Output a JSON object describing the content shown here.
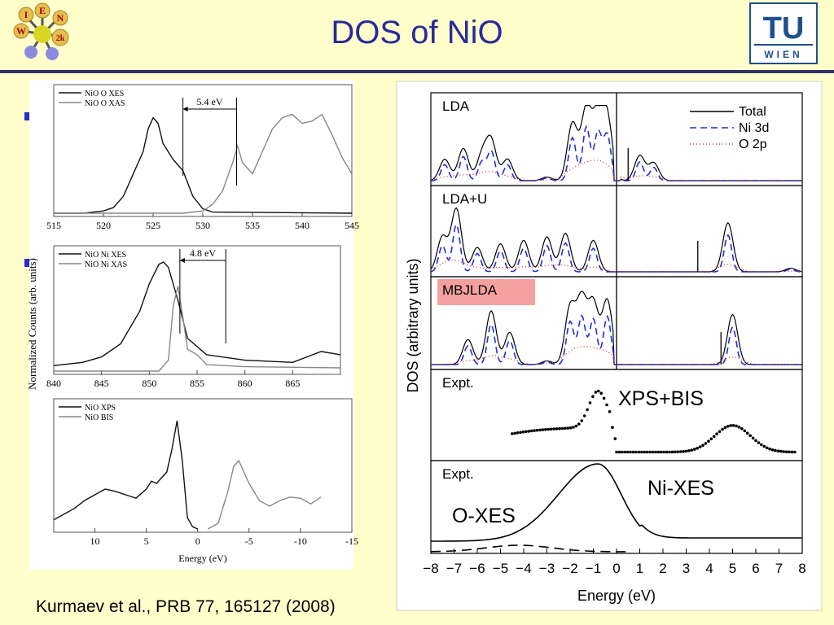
{
  "slide": {
    "title": "DOS of NiO",
    "citation": "Kurmaev et al., PRB 77, 165127 (2008)"
  },
  "logos": {
    "left_letters": [
      "I",
      "E",
      "W",
      "N",
      "2k"
    ],
    "right_text_top": "TU",
    "right_text_bottom": "WIEN"
  },
  "colors": {
    "title": "#2a2a9a",
    "background": "#ffffcc",
    "rule": "#333366"
  },
  "chart_data": [
    {
      "type": "line",
      "panel": "left-top",
      "series": [
        {
          "name": "NiO O XES",
          "x": [
            515,
            518,
            520,
            521,
            522,
            523,
            524,
            524.5,
            525,
            525.5,
            526,
            527,
            528,
            529,
            530,
            531,
            545
          ],
          "y": [
            0,
            0,
            0.02,
            0.05,
            0.15,
            0.35,
            0.55,
            0.75,
            0.85,
            0.8,
            0.62,
            0.48,
            0.38,
            0.15,
            0.04,
            0.01,
            0
          ]
        },
        {
          "name": "NiO O XAS",
          "x": [
            515,
            528,
            530,
            531,
            532,
            533,
            533.5,
            534,
            535,
            536,
            537,
            538,
            539,
            540,
            541,
            542,
            543,
            544,
            545
          ],
          "y": [
            0,
            0,
            0.02,
            0.08,
            0.2,
            0.45,
            0.6,
            0.45,
            0.35,
            0.55,
            0.75,
            0.85,
            0.88,
            0.8,
            0.82,
            0.88,
            0.7,
            0.5,
            0.35
          ]
        }
      ],
      "x_ticks": [
        "515",
        "520",
        "525",
        "530",
        "535",
        "540",
        "545"
      ],
      "xlim": [
        515,
        545
      ],
      "annotation": "5.4 eV"
    },
    {
      "type": "line",
      "panel": "left-middle",
      "series": [
        {
          "name": "NiO Ni XES",
          "x": [
            840,
            843,
            845,
            847,
            849,
            850,
            851,
            851.5,
            852,
            853,
            854,
            856,
            860,
            865,
            868,
            870
          ],
          "y": [
            0.05,
            0.08,
            0.13,
            0.25,
            0.55,
            0.8,
            0.98,
            1.0,
            0.95,
            0.65,
            0.3,
            0.15,
            0.1,
            0.08,
            0.18,
            0.15
          ]
        },
        {
          "name": "NiO Ni XAS",
          "x": [
            840,
            851,
            852,
            852.5,
            853,
            853.5,
            854,
            855,
            856,
            860,
            870
          ],
          "y": [
            0,
            0,
            0.1,
            0.6,
            0.78,
            0.5,
            0.2,
            0.15,
            0.06,
            0.04,
            0.03
          ]
        }
      ],
      "x_ticks": [
        "840",
        "845",
        "850",
        "855",
        "860",
        "865"
      ],
      "xlim": [
        840,
        870
      ],
      "annotation": "4.8 eV"
    },
    {
      "type": "line",
      "panel": "left-bottom",
      "series": [
        {
          "name": "NiO XPS",
          "x": [
            14,
            12,
            11,
            10,
            9,
            8,
            7,
            6,
            5,
            4.5,
            4,
            3.5,
            3,
            2.5,
            2,
            1.5,
            1,
            0.5,
            0
          ],
          "y": [
            0.08,
            0.18,
            0.25,
            0.3,
            0.35,
            0.33,
            0.3,
            0.27,
            0.35,
            0.42,
            0.4,
            0.45,
            0.5,
            0.7,
            0.95,
            0.6,
            0.1,
            0.02,
            0
          ]
        },
        {
          "name": "NiO BIS",
          "x": [
            -1,
            -2,
            -3,
            -3.5,
            -4,
            -5,
            -6,
            -7,
            -8,
            -9,
            -10,
            -11,
            -12
          ],
          "y": [
            0,
            0.05,
            0.35,
            0.55,
            0.6,
            0.4,
            0.25,
            0.2,
            0.25,
            0.28,
            0.27,
            0.22,
            0.28
          ]
        }
      ],
      "x_ticks": [
        "10",
        "5",
        "0",
        "-5",
        "-10",
        "-15"
      ],
      "xlim": [
        14,
        -15
      ],
      "xlabel": "Energy (eV)"
    },
    {
      "type": "line",
      "panel": "right",
      "ylabel": "DOS   (arbitrary units)",
      "xlabel": "Energy   (eV)",
      "x_ticks": [
        "−8",
        "−7",
        "−6",
        "−5",
        "−4",
        "−3",
        "−2",
        "−1",
        "0",
        "1",
        "2",
        "3",
        "4",
        "5",
        "6",
        "7",
        "8"
      ],
      "xlim": [
        -8,
        8
      ],
      "legend": [
        "Total",
        "Ni 3d",
        "O 2p"
      ],
      "subpanels": [
        "LDA",
        "LDA+U",
        "MBJLDA",
        "Expt.",
        "Expt."
      ],
      "annotations": [
        "XPS+BIS",
        "Ni-XES",
        "O-XES"
      ]
    }
  ]
}
